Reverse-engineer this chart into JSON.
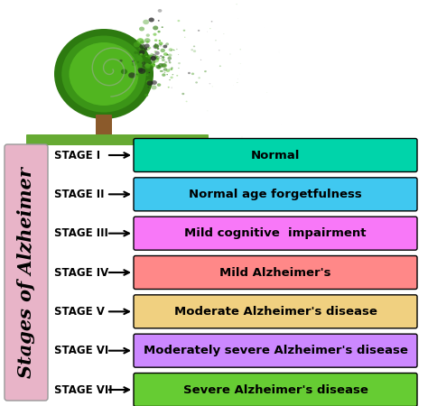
{
  "sidebar_label": "Stages of Alzheimer",
  "sidebar_color": "#e8b4c8",
  "stages": [
    "STAGE I",
    "STAGE II",
    "STAGE III",
    "STAGE IV",
    "STAGE V",
    "STAGE VI",
    "STAGE VII"
  ],
  "labels": [
    "Normal",
    "Normal age forgetfulness",
    "Mild cognitive  impairment",
    "Mild Alzheimer's",
    "Moderate Alzheimer's disease",
    "Moderately severe Alzheimer's disease",
    "Severe Alzheimer's disease"
  ],
  "box_colors": [
    "#00d4aa",
    "#40c8f0",
    "#f878f8",
    "#ff8888",
    "#f0d080",
    "#cc88ff",
    "#66cc33"
  ],
  "background_color": "#ffffff",
  "label_fontsize": 9.5,
  "stage_fontsize": 8.5,
  "sidebar_fontsize": 15,
  "tree_color_dark": "#2d7a10",
  "tree_color_mid": "#3d9918",
  "tree_color_light": "#55bb22",
  "trunk_color": "#8B5a2B",
  "ground_color": "#66aa33"
}
